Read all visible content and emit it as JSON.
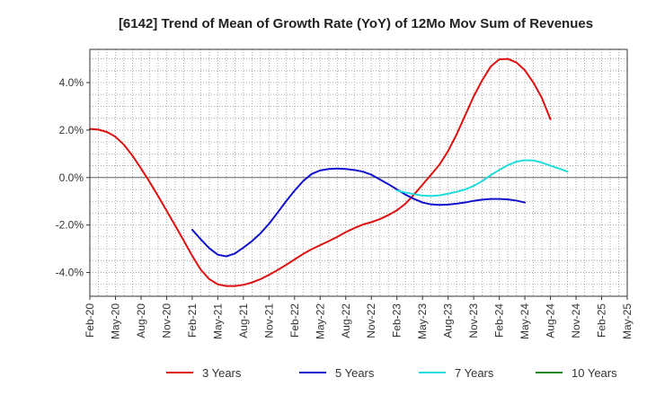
{
  "chart_data": {
    "type": "line",
    "title": "[6142]  Trend of Mean of Growth Rate (YoY) of 12Mo Mov Sum of Revenues",
    "xlabel": "",
    "ylabel": "",
    "ylim": [
      -5.0,
      5.4
    ],
    "yticks": [
      4.0,
      2.0,
      0.0,
      -2.0,
      -4.0
    ],
    "ytick_labels": [
      "4.0%",
      "2.0%",
      "0.0%",
      "-2.0%",
      "-4.0%"
    ],
    "x_start_month_index": 0,
    "x_end_month_index": 63,
    "x_tick_month_indices": [
      0,
      3,
      6,
      9,
      12,
      15,
      18,
      21,
      24,
      27,
      30,
      33,
      36,
      39,
      42,
      45,
      48,
      51,
      54,
      57,
      60,
      63
    ],
    "x_tick_labels": [
      "Feb-20",
      "May-20",
      "Aug-20",
      "Nov-20",
      "Feb-21",
      "May-21",
      "Aug-21",
      "Nov-21",
      "Feb-22",
      "May-22",
      "Aug-22",
      "Nov-22",
      "Feb-23",
      "May-23",
      "Aug-23",
      "Nov-23",
      "Feb-24",
      "May-24",
      "Aug-24",
      "Nov-24",
      "Feb-25",
      "May-25"
    ],
    "grid": true,
    "legend_position": "bottom",
    "series": [
      {
        "name": "3 Years",
        "color": "#dd1111",
        "start_month_index": 0,
        "values": [
          2.05,
          2.02,
          1.92,
          1.72,
          1.38,
          0.92,
          0.38,
          -0.18,
          -0.78,
          -1.4,
          -2.02,
          -2.65,
          -3.3,
          -3.88,
          -4.28,
          -4.5,
          -4.57,
          -4.57,
          -4.52,
          -4.42,
          -4.28,
          -4.1,
          -3.9,
          -3.68,
          -3.45,
          -3.22,
          -3.02,
          -2.85,
          -2.68,
          -2.5,
          -2.3,
          -2.13,
          -1.98,
          -1.88,
          -1.75,
          -1.58,
          -1.38,
          -1.1,
          -0.72,
          -0.3,
          0.12,
          0.55,
          1.12,
          1.82,
          2.62,
          3.42,
          4.1,
          4.68,
          4.98,
          5.0,
          4.85,
          4.52,
          4.0,
          3.35,
          2.45
        ]
      },
      {
        "name": "5 Years",
        "color": "#1111cc",
        "start_month_index": 12,
        "values": [
          -2.2,
          -2.6,
          -2.98,
          -3.25,
          -3.32,
          -3.2,
          -2.95,
          -2.68,
          -2.35,
          -1.95,
          -1.48,
          -1.0,
          -0.55,
          -0.15,
          0.15,
          0.3,
          0.36,
          0.38,
          0.36,
          0.32,
          0.25,
          0.12,
          -0.08,
          -0.28,
          -0.5,
          -0.72,
          -0.9,
          -1.05,
          -1.13,
          -1.15,
          -1.14,
          -1.1,
          -1.05,
          -0.98,
          -0.93,
          -0.9,
          -0.9,
          -0.92,
          -0.97,
          -1.05
        ]
      },
      {
        "name": "7 Years",
        "color": "#22dddd",
        "start_month_index": 36,
        "values": [
          -0.55,
          -0.63,
          -0.7,
          -0.76,
          -0.78,
          -0.75,
          -0.68,
          -0.6,
          -0.5,
          -0.35,
          -0.15,
          0.1,
          0.32,
          0.52,
          0.67,
          0.73,
          0.72,
          0.63,
          0.5,
          0.38,
          0.25
        ]
      },
      {
        "name": "10 Years",
        "color": "#228822",
        "start_month_index": 0,
        "values": []
      }
    ]
  }
}
